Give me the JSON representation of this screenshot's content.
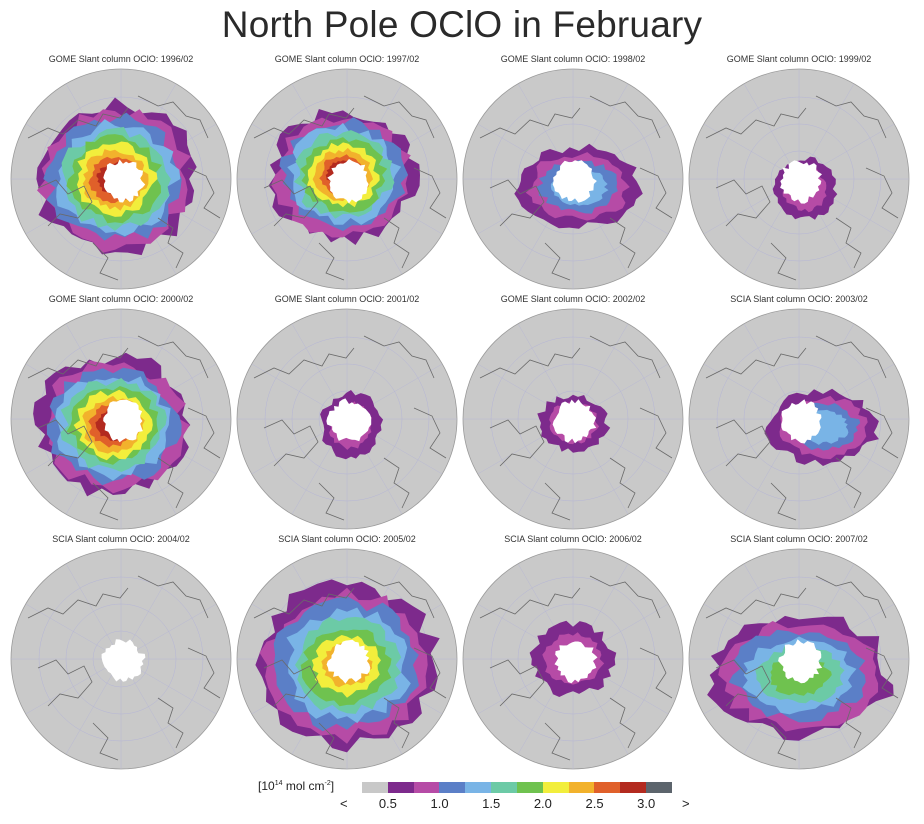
{
  "title": "North Pole OClO in February",
  "panels": [
    {
      "title": "GOME Slant column OClO: 1996/02",
      "level": 5
    },
    {
      "title": "GOME Slant column OClO: 1997/02",
      "level": 5
    },
    {
      "title": "GOME Slant column OClO: 1998/02",
      "level": 2
    },
    {
      "title": "GOME Slant column OClO: 1999/02",
      "level": 1
    },
    {
      "title": "GOME Slant column OClO: 2000/02",
      "level": 5
    },
    {
      "title": "GOME Slant column OClO: 2001/02",
      "level": 1
    },
    {
      "title": "GOME Slant column OClO: 2002/02",
      "level": 1
    },
    {
      "title": "SCIA Slant column OClO: 2003/02",
      "level": 2
    },
    {
      "title": "SCIA Slant column OClO: 2004/02",
      "level": 0
    },
    {
      "title": "SCIA Slant column OClO: 2005/02",
      "level": 4
    },
    {
      "title": "SCIA Slant column OClO: 2006/02",
      "level": 1
    },
    {
      "title": "SCIA Slant column OClO: 2007/02",
      "level": 3
    }
  ],
  "colorbar": {
    "unit_prefix": "[10",
    "unit_exp": "14",
    "unit_mid": " mol cm",
    "unit_exp2": "-2",
    "unit_suffix": "]",
    "less": "<",
    "greater": ">",
    "ticks": [
      "0.5",
      "1.0",
      "1.5",
      "2.0",
      "2.5",
      "3.0"
    ],
    "colors": [
      "#c8c8c8",
      "#7d2a8c",
      "#b64ba6",
      "#5b7fc7",
      "#79b4e6",
      "#6ccaa6",
      "#6fc24f",
      "#f2ee3c",
      "#f2b22c",
      "#e0602a",
      "#b32a1f",
      "#5c646c"
    ]
  },
  "map_colors": {
    "background": "#c9c9c9",
    "coastline": "#6a6a6a",
    "graticule": "#b5b5d6",
    "pole": "#ffffff",
    "levels": [
      "#7d2a8c",
      "#b64ba6",
      "#5b7fc7",
      "#79b4e6",
      "#6ccaa6",
      "#6fc24f",
      "#f2ee3c",
      "#f2b22c",
      "#e0602a",
      "#b32a1f"
    ]
  }
}
